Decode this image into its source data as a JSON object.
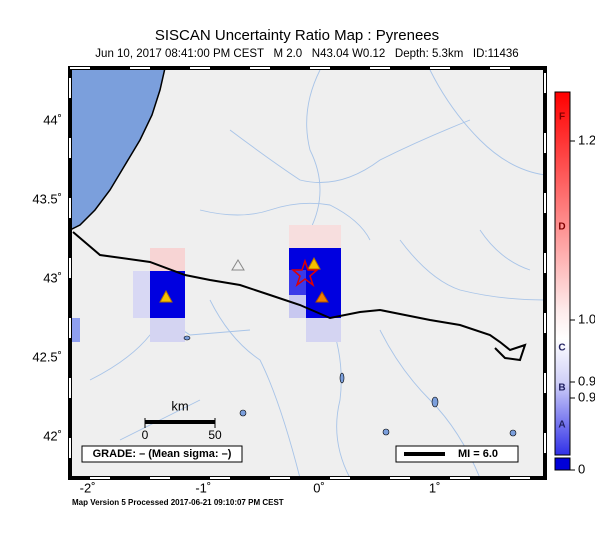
{
  "header": {
    "title": "SISCAN Uncertainty Ratio Map : Pyrenees",
    "subtitle": "Jun 10, 2017 08:41:00 PM CEST   M 2.0   N43.04 W0.12   Depth: 5.3km   ID:11436"
  },
  "map": {
    "lat_ticks": [
      {
        "value": 44,
        "label": "44˚"
      },
      {
        "value": 43.5,
        "label": "43.5˚"
      },
      {
        "value": 43,
        "label": "43˚"
      },
      {
        "value": 42.5,
        "label": "42.5˚"
      },
      {
        "value": 42,
        "label": "42˚"
      }
    ],
    "lon_ticks": [
      {
        "value": -2,
        "label": "-2˚"
      },
      {
        "value": -1,
        "label": "-1˚"
      },
      {
        "value": 0,
        "label": "0˚"
      },
      {
        "value": 1,
        "label": "1˚"
      }
    ],
    "scale_bar": {
      "unit": "km",
      "start": "0",
      "end": "50"
    },
    "grade": "GRADE: – (Mean sigma: –)",
    "mi_legend": "MI = 6.0"
  },
  "colorbar": {
    "grades": [
      "F",
      "D",
      "C",
      "B",
      "A"
    ],
    "labels": [
      "1.2",
      "1.0",
      "0.9",
      "0.9",
      "0"
    ]
  },
  "footer": "Map Version 5 Processed 2017-06-21 09:10:07 PM CEST"
}
